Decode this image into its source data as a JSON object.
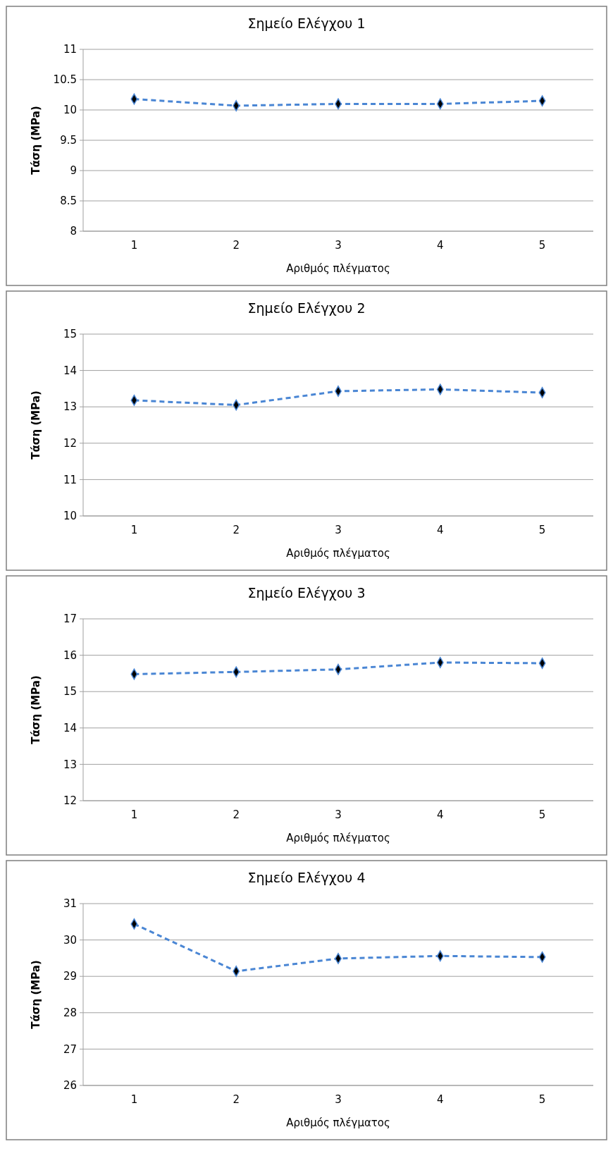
{
  "chart_data": [
    {
      "type": "line",
      "title": "Σημείο Ελέγχου 1",
      "xlabel": "Αριθμός πλέγματος",
      "ylabel": "Τάση (MPa)",
      "categories": [
        "1",
        "2",
        "3",
        "4",
        "5"
      ],
      "series": [
        {
          "color": "#4a86d4",
          "values": [
            10.18,
            10.07,
            10.1,
            10.1,
            10.15
          ]
        }
      ],
      "ylim": [
        8,
        11
      ],
      "yticks": [
        8,
        8.5,
        9,
        9.5,
        10,
        10.5,
        11
      ],
      "grid": "y",
      "marker": "diamond",
      "line_style": "dashed"
    },
    {
      "type": "line",
      "title": "Σημείο Ελέγχου 2",
      "xlabel": "Αριθμός πλέγματος",
      "ylabel": "Τάση (MPa)",
      "categories": [
        "1",
        "2",
        "3",
        "4",
        "5"
      ],
      "series": [
        {
          "color": "#4a86d4",
          "values": [
            13.18,
            13.05,
            13.43,
            13.48,
            13.39
          ]
        }
      ],
      "ylim": [
        10,
        15
      ],
      "yticks": [
        10,
        11,
        12,
        13,
        14,
        15
      ],
      "grid": "y",
      "marker": "diamond",
      "line_style": "dashed"
    },
    {
      "type": "line",
      "title": "Σημείο Ελέγχου 3",
      "xlabel": "Αριθμός πλέγματος",
      "ylabel": "Τάση (MPa)",
      "categories": [
        "1",
        "2",
        "3",
        "4",
        "5"
      ],
      "series": [
        {
          "color": "#4a86d4",
          "values": [
            15.48,
            15.54,
            15.61,
            15.8,
            15.78
          ]
        }
      ],
      "ylim": [
        12,
        17
      ],
      "yticks": [
        12,
        13,
        14,
        15,
        16,
        17
      ],
      "grid": "y",
      "marker": "diamond",
      "line_style": "dashed"
    },
    {
      "type": "line",
      "title": "Σημείο Ελέγχου 4",
      "xlabel": "Αριθμός πλέγματος",
      "ylabel": "Τάση (MPa)",
      "categories": [
        "1",
        "2",
        "3",
        "4",
        "5"
      ],
      "series": [
        {
          "color": "#4a86d4",
          "values": [
            30.44,
            29.14,
            29.49,
            29.56,
            29.53
          ]
        }
      ],
      "ylim": [
        26,
        31
      ],
      "yticks": [
        26,
        27,
        28,
        29,
        30,
        31
      ],
      "grid": "y",
      "marker": "diamond",
      "line_style": "dashed"
    }
  ]
}
